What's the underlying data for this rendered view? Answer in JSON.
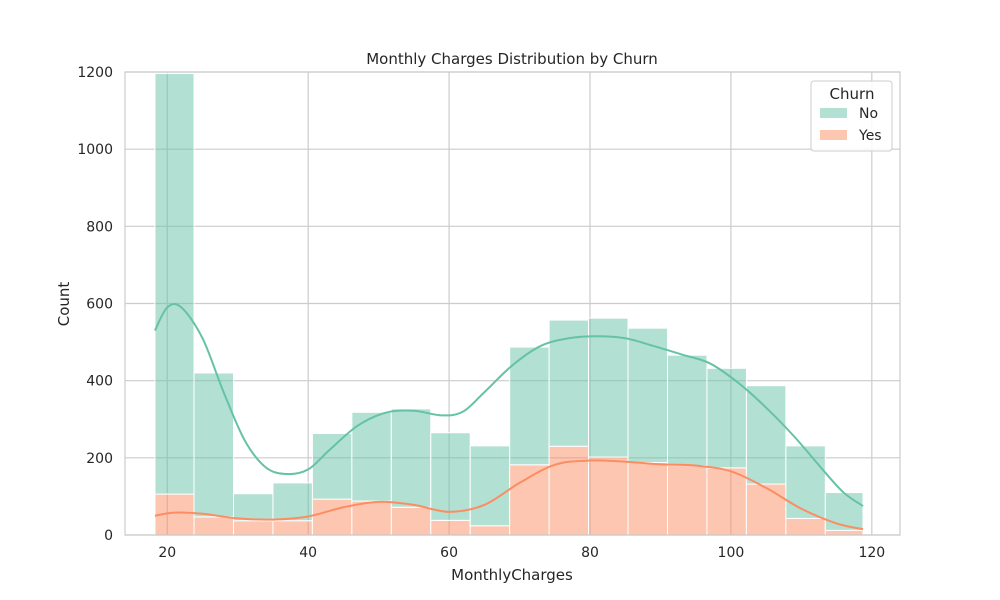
{
  "chart_data": {
    "type": "histogram",
    "title": "Monthly Charges Distribution by Churn",
    "xlabel": "MonthlyCharges",
    "ylabel": "Count",
    "xlim": [
      14,
      124
    ],
    "ylim": [
      0,
      1200
    ],
    "xticks": [
      20,
      40,
      60,
      80,
      100,
      120
    ],
    "yticks": [
      0,
      200,
      400,
      600,
      800,
      1000,
      1200
    ],
    "grid": true,
    "stacked": true,
    "bins": [
      18.25,
      23.8,
      29.4,
      35.0,
      40.6,
      46.2,
      51.8,
      57.4,
      63.0,
      68.6,
      74.2,
      79.8,
      85.4,
      91.0,
      96.6,
      102.2,
      107.8,
      113.4,
      118.75
    ],
    "legend": {
      "title": "Churn",
      "position": "top-right"
    },
    "series": [
      {
        "name": "Yes",
        "color": "#fc8d62",
        "counts": [
          106,
          47,
          37,
          37,
          93,
          88,
          72,
          38,
          24,
          182,
          230,
          202,
          188,
          180,
          174,
          132,
          43,
          12
        ],
        "kde": {
          "x": [
            18.25,
            21,
            25,
            30,
            35,
            40,
            45,
            50,
            55,
            60,
            65,
            70,
            75,
            80,
            85,
            90,
            95,
            100,
            105,
            110,
            115,
            118.75
          ],
          "y": [
            50,
            58,
            55,
            43,
            40,
            48,
            72,
            86,
            78,
            60,
            78,
            135,
            182,
            193,
            190,
            183,
            180,
            165,
            122,
            68,
            30,
            15
          ]
        }
      },
      {
        "name": "No",
        "color": "#66c2a5",
        "counts": [
          1090,
          373,
          70,
          98,
          170,
          230,
          255,
          227,
          207,
          305,
          327,
          360,
          348,
          286,
          258,
          255,
          188,
          98
        ],
        "kde": {
          "x": [
            18.25,
            20,
            22,
            25,
            28,
            31,
            34,
            37,
            40,
            43,
            47,
            51,
            55,
            59,
            62,
            65,
            69,
            73,
            77,
            81,
            85,
            89,
            93,
            97,
            101,
            105,
            109,
            113,
            116,
            118.75
          ],
          "y": [
            530,
            590,
            590,
            510,
            370,
            245,
            175,
            158,
            170,
            220,
            283,
            317,
            322,
            310,
            320,
            370,
            440,
            490,
            510,
            515,
            510,
            490,
            468,
            445,
            395,
            330,
            255,
            170,
            110,
            75
          ]
        }
      }
    ]
  }
}
